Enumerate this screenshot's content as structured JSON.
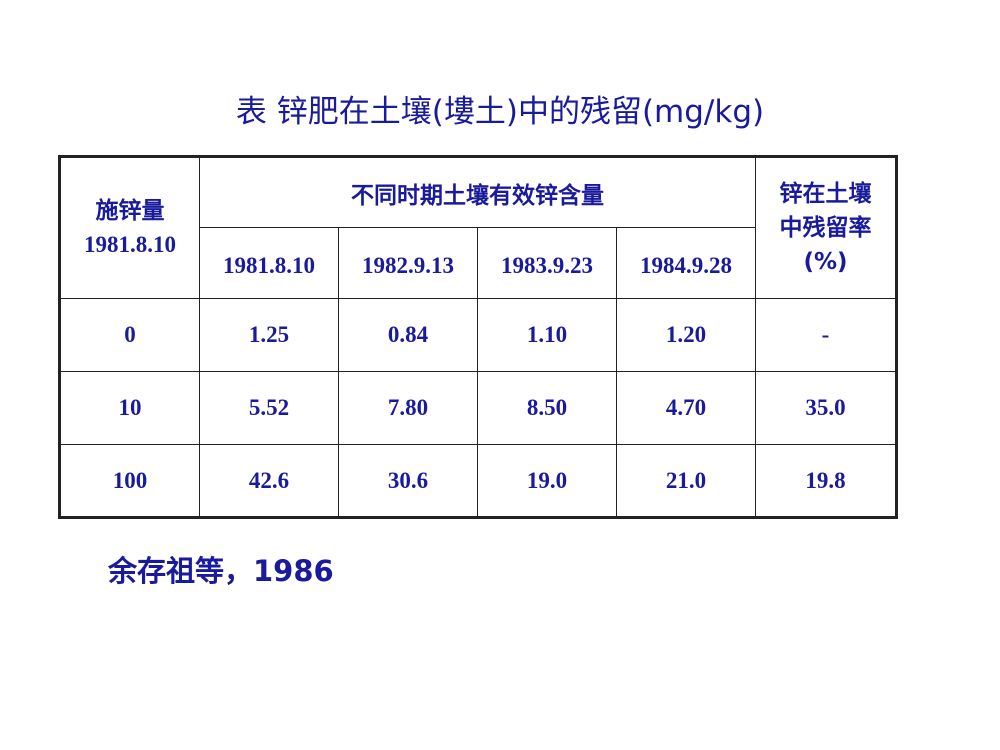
{
  "title": "表 锌肥在土壤(塿土)中的残留(mg/kg)",
  "table": {
    "header": {
      "rate": [
        "施锌量",
        "1981.8.10"
      ],
      "group": "不同时期土壤有效锌含量",
      "dates": [
        "1981.8.10",
        "1982.9.13",
        "1983.9.23",
        "1984.9.28"
      ],
      "residual": [
        "锌在土壤",
        "中残留率",
        "(%)"
      ]
    },
    "rows": [
      [
        "0",
        "1.25",
        "0.84",
        "1.10",
        "1.20",
        "-"
      ],
      [
        "10",
        "5.52",
        "7.80",
        "8.50",
        "4.70",
        "35.0"
      ],
      [
        "100",
        "42.6",
        "30.6",
        "19.0",
        "21.0",
        "19.8"
      ]
    ]
  },
  "source": "余存祖等，1986"
}
